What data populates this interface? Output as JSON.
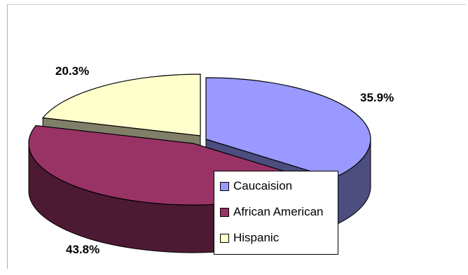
{
  "chart_data": {
    "type": "pie",
    "title": "",
    "style": "3d-exploded",
    "categories": [
      "Caucaision",
      "African American",
      "Hispanic"
    ],
    "values": [
      35.9,
      43.8,
      20.3
    ],
    "data_labels": [
      "35.9%",
      "43.8%",
      "20.3%"
    ],
    "colors": [
      "#9999ff",
      "#993366",
      "#ffffcc"
    ],
    "side_colors": [
      "#4d4d80",
      "#4d1a33",
      "#80806a"
    ],
    "legend": {
      "position": "bottom-right",
      "entries": [
        "Caucaision",
        "African American",
        "Hispanic"
      ]
    }
  }
}
